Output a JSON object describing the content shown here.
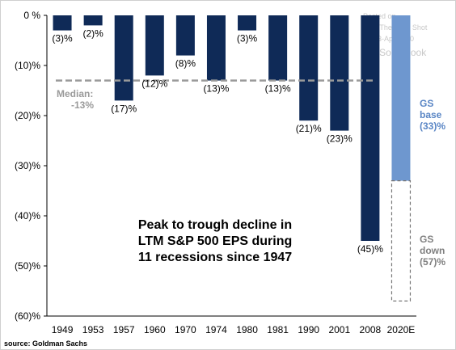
{
  "chart_data": {
    "type": "bar",
    "categories": [
      "1949",
      "1953",
      "1957",
      "1960",
      "1970",
      "1974",
      "1980",
      "1981",
      "1990",
      "2001",
      "2008",
      "2020E"
    ],
    "values": [
      -3,
      -2,
      -17,
      -12,
      -8,
      -13,
      -3,
      -13,
      -21,
      -23,
      -45,
      -33
    ],
    "data_labels": [
      "(3)%",
      "(2)%",
      "(17)%",
      "(12)%",
      "(8)%",
      "(13)%",
      "(3)%",
      "(13)%",
      "(21)%",
      "(23)%",
      "(45)%",
      ""
    ],
    "y_ticks": [
      {
        "value": 0,
        "label": "0 %"
      },
      {
        "value": -10,
        "label": "(10)%"
      },
      {
        "value": -20,
        "label": "(20)%"
      },
      {
        "value": -30,
        "label": "(30)%"
      },
      {
        "value": -40,
        "label": "(40)%"
      },
      {
        "value": -50,
        "label": "(50)%"
      },
      {
        "value": -60,
        "label": "(60)%"
      }
    ],
    "ylim": [
      -60,
      0
    ],
    "grid": false,
    "median": {
      "value": -13,
      "label_line1": "Median:",
      "label_line2": "-13%"
    },
    "gs_base": {
      "value": -33,
      "line1": "GS",
      "line2": "base",
      "line3": "(33)%"
    },
    "gs_down": {
      "value": -57,
      "line1": "GS",
      "line2": "down",
      "line3": "(57)%"
    },
    "annotation": [
      "Peak to trough decline in",
      "LTM S&P 500 EPS during",
      "11 recessions since 1947"
    ],
    "watermark": [
      "Posted on",
      "With The Daily Shot",
      "03-Apr-2020",
      "@SoberLook"
    ],
    "source": "source: Goldman Sachs",
    "colors": {
      "bar": "#0f2a57",
      "gs_base": "#6e97cf",
      "gs_text": "#5a86c5",
      "median_line": "#9a9a9a",
      "gs_down_text": "#808080"
    }
  }
}
